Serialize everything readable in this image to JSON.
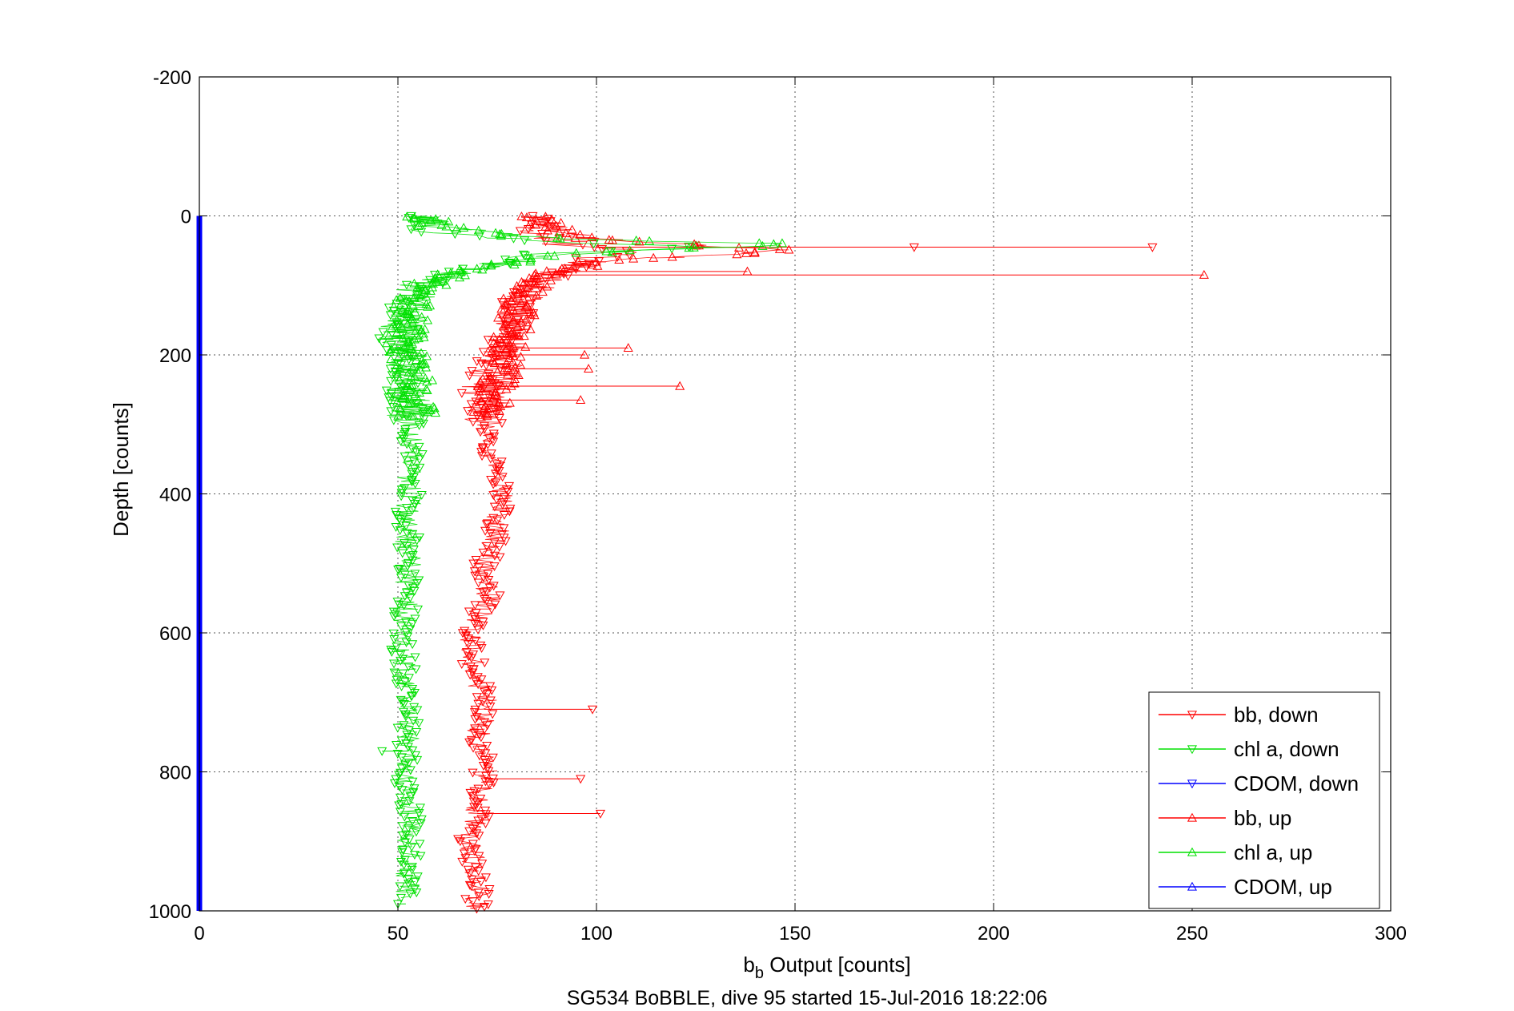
{
  "chart_data": {
    "type": "scatter",
    "title": "",
    "caption": "SG534 BoBBLE, dive 95 started 15-Jul-2016 18:22:06",
    "xlabel_main": "b",
    "xlabel_sub": "b",
    "xlabel_rest": " Output [counts]",
    "ylabel": "Depth [counts]",
    "xlim": [
      0,
      300
    ],
    "ylim": [
      -200,
      1000
    ],
    "y_reversed": true,
    "xticks": [
      "0",
      "50",
      "100",
      "150",
      "200",
      "250",
      "300"
    ],
    "yticks": [
      "-200",
      "0",
      "200",
      "400",
      "600",
      "800",
      "1000"
    ],
    "grid": true,
    "legend_position": "bottom-right",
    "colors": {
      "bb": "#ff0000",
      "chl": "#00e000",
      "cdom": "#0000ff"
    },
    "series": [
      {
        "name": "bb, down",
        "color": "#ff0000",
        "marker": "triangle-down",
        "points": [
          [
            84,
            0
          ],
          [
            86,
            10
          ],
          [
            85,
            25
          ],
          [
            90,
            40
          ],
          [
            110,
            50
          ],
          [
            100,
            60
          ],
          [
            90,
            80
          ],
          [
            85,
            100
          ],
          [
            80,
            130
          ],
          [
            78,
            160
          ],
          [
            75,
            200
          ],
          [
            72,
            230
          ],
          [
            70,
            260
          ],
          [
            72,
            300
          ],
          [
            74,
            350
          ],
          [
            76,
            400
          ],
          [
            75,
            450
          ],
          [
            72,
            500
          ],
          [
            73,
            550
          ],
          [
            70,
            580
          ],
          [
            68,
            620
          ],
          [
            70,
            660
          ],
          [
            72,
            700
          ],
          [
            70,
            760
          ],
          [
            72,
            800
          ],
          [
            70,
            860
          ],
          [
            68,
            900
          ],
          [
            70,
            960
          ],
          [
            70,
            1000
          ]
        ],
        "outliers": [
          [
            240,
            45
          ],
          [
            180,
            45
          ],
          [
            99,
            710
          ],
          [
            96,
            810
          ],
          [
            101,
            860
          ]
        ]
      },
      {
        "name": "chl a, down",
        "color": "#00e000",
        "marker": "triangle-down",
        "points": [
          [
            56,
            0
          ],
          [
            57,
            10
          ],
          [
            55,
            20
          ],
          [
            70,
            30
          ],
          [
            100,
            40
          ],
          [
            130,
            45
          ],
          [
            85,
            55
          ],
          [
            65,
            80
          ],
          [
            55,
            100
          ],
          [
            52,
            130
          ],
          [
            50,
            170
          ],
          [
            50,
            200
          ],
          [
            51,
            240
          ],
          [
            52,
            280
          ],
          [
            53,
            320
          ],
          [
            53,
            400
          ],
          [
            52,
            450
          ],
          [
            53,
            500
          ],
          [
            52,
            560
          ],
          [
            51,
            620
          ],
          [
            52,
            680
          ],
          [
            53,
            740
          ],
          [
            52,
            800
          ],
          [
            53,
            860
          ],
          [
            53,
            920
          ],
          [
            52,
            980
          ]
        ],
        "outliers": [
          [
            46,
            770
          ],
          [
            50,
            990
          ]
        ]
      },
      {
        "name": "CDOM, down",
        "color": "#0000ff",
        "marker": "triangle-down",
        "x": 0,
        "depth_range": [
          0,
          1000
        ]
      },
      {
        "name": "bb, up",
        "color": "#ff0000",
        "marker": "triangle-up",
        "points": [
          [
            85,
            5
          ],
          [
            88,
            15
          ],
          [
            95,
            30
          ],
          [
            120,
            40
          ],
          [
            150,
            50
          ],
          [
            100,
            65
          ],
          [
            88,
            85
          ],
          [
            82,
            110
          ],
          [
            80,
            140
          ],
          [
            78,
            180
          ],
          [
            76,
            220
          ],
          [
            74,
            260
          ],
          [
            74,
            290
          ]
        ],
        "outliers": [
          [
            253,
            85
          ],
          [
            138,
            80
          ],
          [
            108,
            190
          ],
          [
            97,
            200
          ],
          [
            98,
            220
          ],
          [
            121,
            245
          ],
          [
            96,
            265
          ]
        ]
      },
      {
        "name": "chl a, up",
        "color": "#00e000",
        "marker": "triangle-up",
        "points": [
          [
            57,
            0
          ],
          [
            60,
            15
          ],
          [
            80,
            30
          ],
          [
            120,
            38
          ],
          [
            152,
            40
          ],
          [
            90,
            55
          ],
          [
            70,
            75
          ],
          [
            58,
            95
          ],
          [
            53,
            130
          ],
          [
            52,
            170
          ],
          [
            53,
            210
          ],
          [
            54,
            250
          ],
          [
            55,
            290
          ]
        ],
        "outliers": []
      },
      {
        "name": "CDOM, up",
        "color": "#0000ff",
        "marker": "triangle-up"
      }
    ]
  }
}
